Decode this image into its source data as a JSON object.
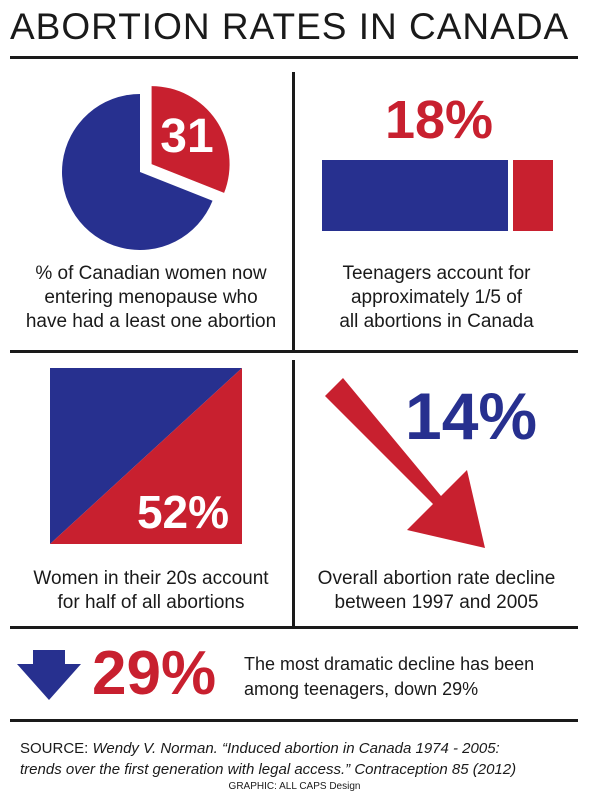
{
  "title": "ABORTION RATES IN CANADA",
  "colors": {
    "blue": "#27308f",
    "red": "#c8202f",
    "dark": "#1a1a1a"
  },
  "panels": {
    "menopause": {
      "value": "31",
      "percent": 31,
      "caption_lines": [
        "% of Canadian women now",
        "entering menopause who",
        "have had a least one abortion"
      ]
    },
    "teenagers": {
      "value": "18%",
      "share": 0.18,
      "caption_lines": [
        "Teenagers account for",
        "approximately 1/5 of",
        "all abortions in Canada"
      ]
    },
    "twenties": {
      "value": "52%",
      "share": 0.52,
      "caption_lines": [
        "Women in their 20s account",
        "for half of all abortions"
      ]
    },
    "decline": {
      "value": "14%",
      "icon": "down-right-arrow-icon",
      "caption_lines": [
        "Overall abortion rate decline",
        "between 1997 and 2005"
      ]
    }
  },
  "bottom": {
    "icon": "down-arrow-icon",
    "value": "29%",
    "text_lines": [
      "The most dramatic decline has been",
      "among teenagers, down 29%"
    ]
  },
  "source": {
    "label": "SOURCE:",
    "line1": "Wendy V. Norman. “Induced abortion in Canada 1974 - 2005:",
    "line2": "trends over the first generation with legal access.” Contraception 85 (2012)"
  },
  "credit": "GRAPHIC: ALL CAPS Design"
}
